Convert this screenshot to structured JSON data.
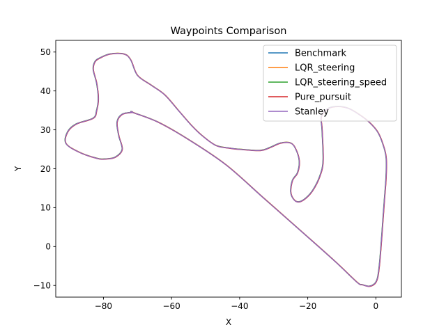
{
  "chart_data": {
    "type": "line",
    "title": "Waypoints Comparison",
    "xlabel": "X",
    "ylabel": "Y",
    "xlim": [
      -94,
      7.5
    ],
    "ylim": [
      -13,
      53
    ],
    "xticks": [
      -80,
      -60,
      -40,
      -20,
      0
    ],
    "yticks": [
      -10,
      0,
      10,
      20,
      30,
      40,
      50
    ],
    "xtick_labels": [
      "−80",
      "−60",
      "−40",
      "−20",
      "0"
    ],
    "ytick_labels": [
      "−10",
      "0",
      "10",
      "20",
      "30",
      "40",
      "50"
    ],
    "grid": false,
    "legend_position": "top-right",
    "path": {
      "x": [
        -71.5,
        -74.5,
        -76,
        -75.5,
        -74.5,
        -76.5,
        -79.5,
        -82,
        -87,
        -91,
        -90.5,
        -88,
        -83,
        -82,
        -81.5,
        -82,
        -83,
        -82.5,
        -81,
        -78,
        -74,
        -72,
        -70,
        -66,
        -62,
        -58,
        -54,
        -51,
        -47,
        -43,
        -40,
        -34,
        -31,
        -28,
        -25,
        -23.5,
        -22.5,
        -23,
        -24.5,
        -25,
        -24,
        -22.5,
        -20.5,
        -18.5,
        -16.5,
        -15.5,
        -15.8,
        -16,
        -14,
        -11,
        -8,
        -5,
        -2,
        0.5,
        2,
        3,
        3,
        2.5,
        2,
        1.5,
        1,
        0.5,
        -0.3,
        -2,
        -4,
        -5.5,
        -12,
        -22,
        -33,
        -44,
        -55,
        -64,
        -71.5
      ],
      "y": [
        34.5,
        34,
        32,
        28.5,
        25,
        23,
        22.5,
        22.7,
        24.2,
        26.5,
        29.5,
        31.5,
        33,
        35,
        38,
        42,
        45.5,
        47.5,
        48.5,
        49.5,
        49.5,
        48,
        44,
        41.5,
        39,
        35,
        31,
        28.5,
        26,
        25.3,
        25,
        24.7,
        25.5,
        26.6,
        26.6,
        25,
        22,
        19,
        17,
        14,
        12,
        11.5,
        12.5,
        14.5,
        18,
        22,
        30,
        33.5,
        35.5,
        36,
        35.5,
        34,
        32,
        29.5,
        26.5,
        23,
        18,
        12,
        6,
        0,
        -5,
        -8,
        -9.5,
        -10.2,
        -9.8,
        -9.2,
        -3.8,
        4,
        12.5,
        21,
        27.5,
        32,
        34.5
      ]
    },
    "series": [
      {
        "name": "Benchmark",
        "color": "#1f77b4",
        "offset": [
          0,
          0
        ]
      },
      {
        "name": "LQR_steering",
        "color": "#ff7f0e",
        "offset": [
          0.04,
          0.04
        ]
      },
      {
        "name": "LQR_steering_speed",
        "color": "#2ca02c",
        "offset": [
          -0.04,
          0.03
        ]
      },
      {
        "name": "Pure_pursuit",
        "color": "#d62728",
        "offset": [
          0.06,
          -0.05
        ]
      },
      {
        "name": "Stanley",
        "color": "#9467bd",
        "offset": [
          0,
          0
        ]
      }
    ]
  }
}
